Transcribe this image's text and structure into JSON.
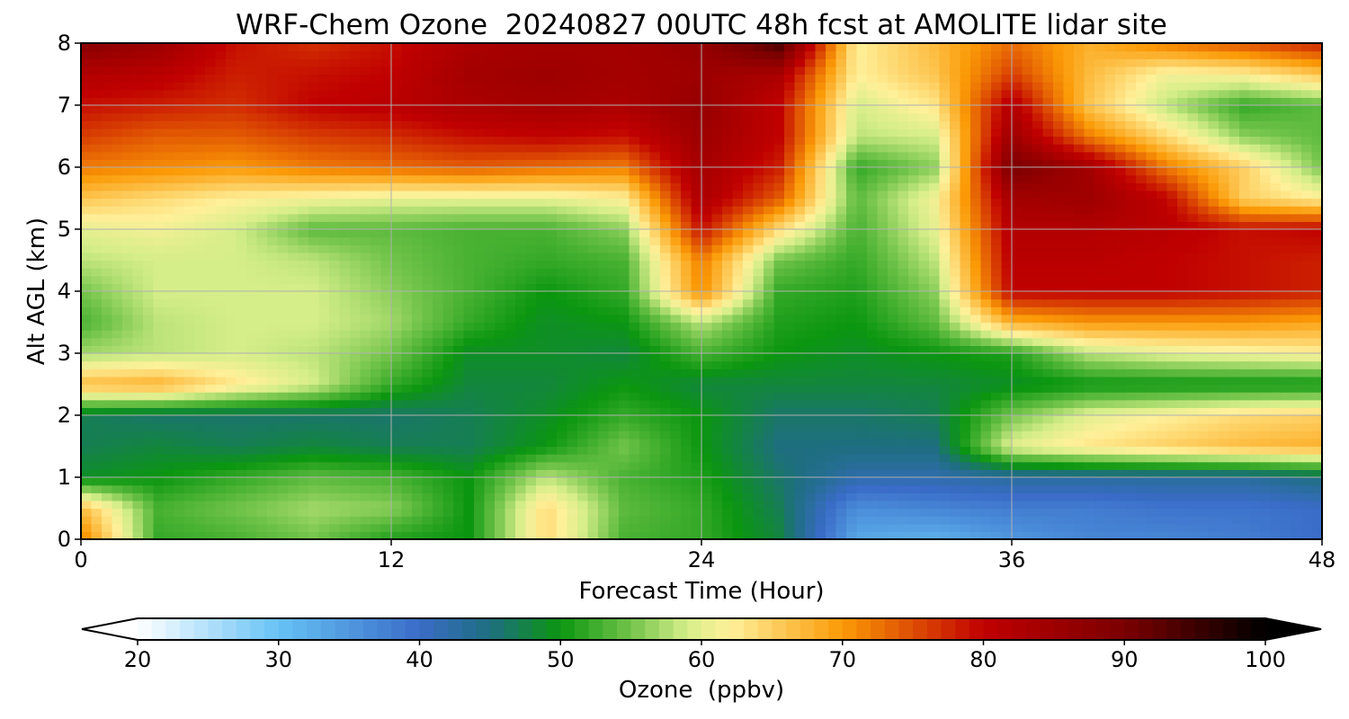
{
  "chart_data": {
    "type": "heatmap",
    "title": "WRF-Chem Ozone  20240827 00UTC 48h fcst at AMOLITE lidar site",
    "xlabel": "Forecast Time (Hour)",
    "ylabel": "Alt AGL (km)",
    "xlim": [
      0,
      48
    ],
    "ylim": [
      0,
      8
    ],
    "xticks": [
      0,
      12,
      24,
      36,
      48
    ],
    "yticks": [
      0,
      1,
      2,
      3,
      4,
      5,
      6,
      7,
      8
    ],
    "grid": true,
    "colorbar": {
      "label": "Ozone  (ppbv)",
      "min": 20,
      "max": 100,
      "ticks": [
        20,
        30,
        40,
        50,
        60,
        70,
        80,
        90,
        100
      ],
      "extend": "both",
      "colors": [
        {
          "value": 20,
          "color": "#ffffff"
        },
        {
          "value": 30,
          "color": "#66c2f5"
        },
        {
          "value": 40,
          "color": "#3a6cc8"
        },
        {
          "value": 45,
          "color": "#1e6e80"
        },
        {
          "value": 50,
          "color": "#0b9610"
        },
        {
          "value": 55,
          "color": "#72c44a"
        },
        {
          "value": 59,
          "color": "#d6ee8a"
        },
        {
          "value": 62,
          "color": "#fff09a"
        },
        {
          "value": 70,
          "color": "#fb9a06"
        },
        {
          "value": 80,
          "color": "#c00000"
        },
        {
          "value": 90,
          "color": "#7a0000"
        },
        {
          "value": 100,
          "color": "#000000"
        }
      ]
    },
    "x_hours": [
      0,
      3,
      6,
      9,
      12,
      15,
      18,
      21,
      24,
      27,
      30,
      33,
      36,
      39,
      42,
      45,
      48
    ],
    "y_km": [
      0,
      0.5,
      1,
      1.5,
      2,
      2.5,
      3,
      3.5,
      4,
      4.5,
      5,
      5.5,
      6,
      6.5,
      7,
      7.5,
      8
    ],
    "ozone_ppbv": [
      [
        72,
        52,
        53,
        55,
        51,
        50,
        64,
        53,
        52,
        48,
        33,
        32,
        35,
        37,
        37,
        38,
        40
      ],
      [
        67,
        53,
        55,
        57,
        56,
        50,
        64,
        54,
        52,
        47,
        36,
        37,
        38,
        38,
        39,
        39,
        40
      ],
      [
        49,
        50,
        52,
        54,
        53,
        50,
        58,
        53,
        51,
        46,
        42,
        42,
        43,
        43,
        43,
        43,
        45
      ],
      [
        47,
        48,
        47,
        48,
        47,
        47,
        50,
        55,
        50,
        45,
        45,
        45,
        60,
        63,
        65,
        67,
        68
      ],
      [
        47,
        46,
        46,
        46,
        46,
        47,
        49,
        52,
        50,
        46,
        46,
        47,
        55,
        60,
        62,
        64,
        65
      ],
      [
        67,
        68,
        63,
        59,
        52,
        48,
        48,
        50,
        48,
        48,
        48,
        48,
        49,
        50,
        50,
        50,
        50
      ],
      [
        57,
        58,
        59,
        58,
        55,
        49,
        49,
        48,
        53,
        50,
        49,
        50,
        51,
        58,
        60,
        61,
        62
      ],
      [
        53,
        58,
        59,
        59,
        57,
        52,
        49,
        50,
        58,
        51,
        50,
        54,
        68,
        70,
        70,
        70,
        69
      ],
      [
        55,
        59,
        59,
        59,
        56,
        53,
        50,
        52,
        71,
        52,
        51,
        56,
        80,
        80,
        80,
        79,
        78
      ],
      [
        58,
        59,
        59,
        58,
        55,
        53,
        52,
        53,
        72,
        55,
        52,
        58,
        81,
        81,
        80,
        79,
        78
      ],
      [
        60,
        61,
        59,
        54,
        54,
        53,
        53,
        56,
        79,
        64,
        53,
        60,
        82,
        82,
        81,
        79,
        80
      ],
      [
        66,
        64,
        62,
        61,
        60,
        60,
        60,
        62,
        83,
        74,
        54,
        61,
        84,
        85,
        80,
        65,
        62
      ],
      [
        72,
        71,
        70,
        72,
        73,
        74,
        73,
        72,
        84,
        78,
        52,
        56,
        90,
        84,
        72,
        65,
        55
      ],
      [
        76,
        74,
        74,
        76,
        77,
        79,
        80,
        79,
        85,
        80,
        58,
        59,
        85,
        72,
        64,
        56,
        54
      ],
      [
        79,
        78,
        77,
        80,
        81,
        83,
        84,
        83,
        86,
        80,
        59,
        63,
        82,
        66,
        58,
        52,
        54
      ],
      [
        82,
        81,
        78,
        79,
        80,
        84,
        85,
        84,
        85,
        83,
        62,
        66,
        76,
        67,
        61,
        62,
        66
      ],
      [
        88,
        85,
        79,
        77,
        79,
        83,
        84,
        84,
        86,
        94,
        62,
        67,
        73,
        68,
        72,
        75,
        78
      ]
    ]
  }
}
